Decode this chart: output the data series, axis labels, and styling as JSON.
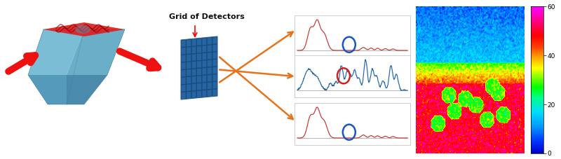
{
  "background_color": "#ffffff",
  "grid_label": "Grid of Detectors",
  "colorbar_ticks": [
    0,
    20,
    40,
    60
  ],
  "orange_color": "#e8731a",
  "red_arrow_color": "#ee1111",
  "spec1_color": "#cc3333",
  "spec2_color": "#2266aa",
  "spec3_color": "#cc3333",
  "circle1_color": "#1a55cc",
  "circle2_color": "#cc2222",
  "circle3_color": "#1a55cc",
  "prism_top_color": "#e03020",
  "prism_body_left": "#7bbdd4",
  "prism_body_right": "#5aa0c0",
  "prism_body_front": "#6ab0cc",
  "prism_body_bottom": "#4a90b0",
  "grid_dark": "#1a4a7a",
  "grid_mid": "#2a6aaa",
  "grid_light": "#3a88cc"
}
